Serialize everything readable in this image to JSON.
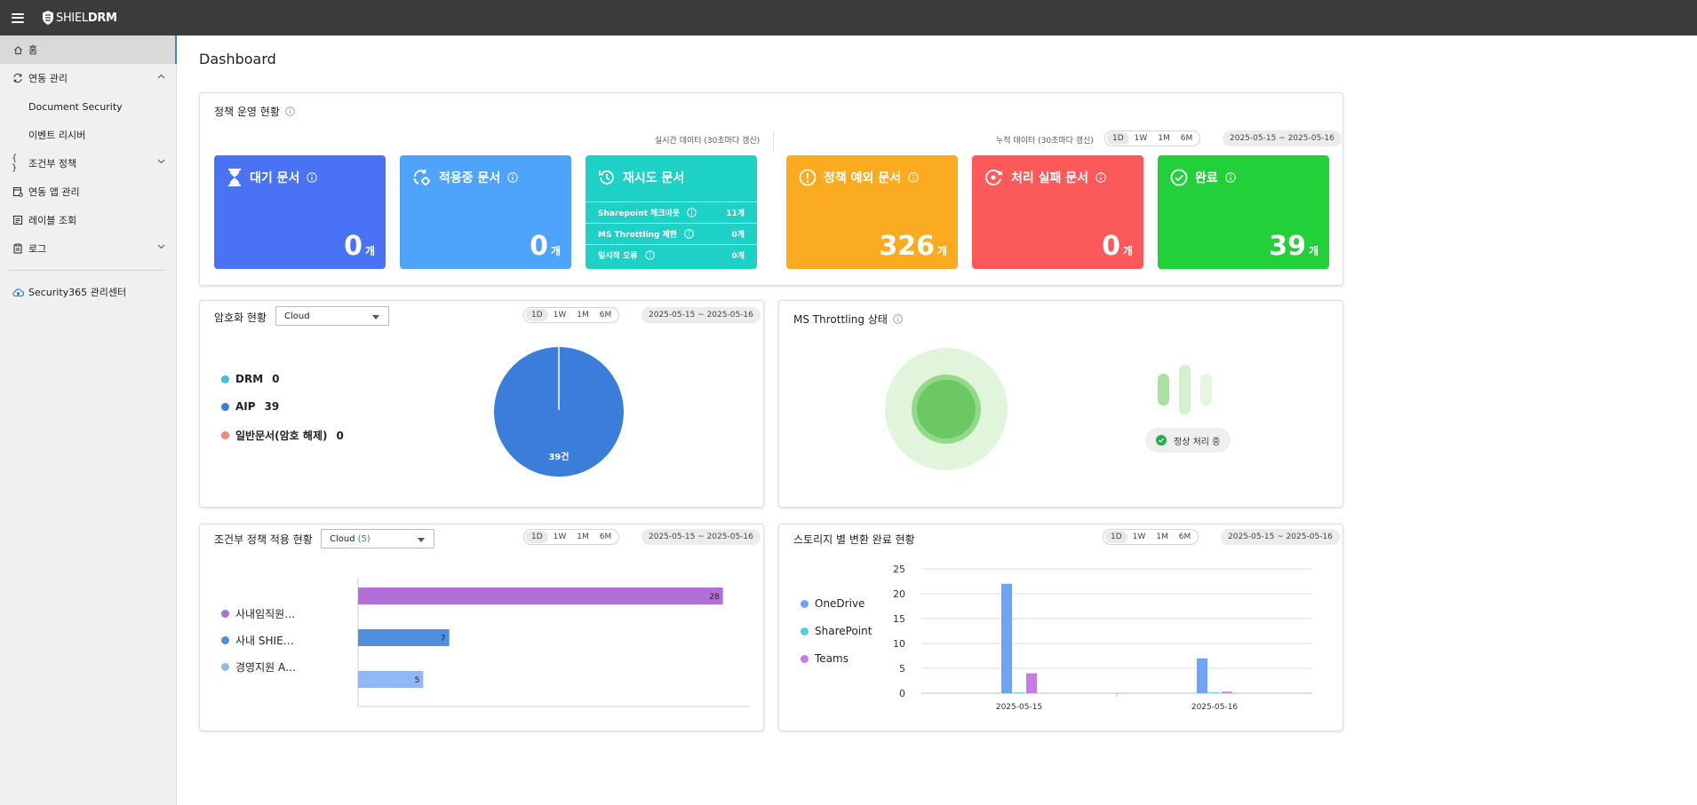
{
  "app": {
    "logo_prefix": "SHIEL",
    "logo_bold": "DRM"
  },
  "sidebar": {
    "items": [
      {
        "label": "홈"
      },
      {
        "label": "연동 관리"
      },
      {
        "label": "Document Security"
      },
      {
        "label": "이벤트 리시버"
      },
      {
        "label": "조건부 정책"
      },
      {
        "label": "연동 앱 관리"
      },
      {
        "label": "레이블 조회"
      },
      {
        "label": "로그"
      }
    ],
    "footer_item": "Security365 관리센터"
  },
  "page": {
    "title": "Dashboard"
  },
  "policy_status": {
    "title": "정책 운영 현황",
    "realtime_label": "실시간 데이터 (30초마다 갱신)",
    "cumulative_label": "누적 데이터 (30초마다 갱신)",
    "periods": [
      "1D",
      "1W",
      "1M",
      "6M"
    ],
    "date_range": "2025-05-15 ~ 2025-05-16",
    "tiles": {
      "waiting": {
        "label": "대기 문서",
        "value": "0",
        "unit": "개",
        "color": "#4a72f5"
      },
      "applying": {
        "label": "적용중 문서",
        "value": "0",
        "unit": "개",
        "color": "#4ea3fb"
      },
      "retry": {
        "label": "재시도 문서",
        "color": "#1ed1c7",
        "rows": [
          {
            "label": "Sharepoint 체크아웃",
            "value": "11개"
          },
          {
            "label": "MS Throttling 제한",
            "value": "0개"
          },
          {
            "label": "일시적 오류",
            "value": "0개"
          }
        ]
      },
      "exception": {
        "label": "정책 예외 문서",
        "value": "326",
        "unit": "개",
        "color": "#fbab1f"
      },
      "failed": {
        "label": "처리 실패 문서",
        "value": "0",
        "unit": "개",
        "color": "#fc5a5a"
      },
      "done": {
        "label": "완료",
        "value": "39",
        "unit": "개",
        "color": "#22d13a"
      }
    }
  },
  "encryption": {
    "title": "암호화 현황",
    "select_value": "Cloud",
    "periods": [
      "1D",
      "1W",
      "1M",
      "6M"
    ],
    "date_range": "2025-05-15 ~ 2025-05-16",
    "legend": [
      {
        "name": "DRM",
        "value": "0",
        "color": "#3cc3d6"
      },
      {
        "name": "AIP",
        "value": "39",
        "color": "#3b7ddb"
      },
      {
        "name": "일반문서(암호 해제)",
        "value": "0",
        "color": "#f2876a"
      }
    ],
    "pie_label": "39건"
  },
  "throttling": {
    "title": "MS Throttling 상태",
    "status": "정상 처리 중"
  },
  "conditional": {
    "title": "조건부 정책 적용 현황",
    "select_value": "Cloud",
    "select_count": "(5)",
    "periods": [
      "1D",
      "1W",
      "1M",
      "6M"
    ],
    "date_range": "2025-05-15 ~ 2025-05-16"
  },
  "storage": {
    "title": "스토리지 별 변환 완료 현황",
    "periods": [
      "1D",
      "1W",
      "1M",
      "6M"
    ],
    "date_range": "2025-05-15 ~ 2025-05-16"
  },
  "chart_data": [
    {
      "id": "encryption-pie",
      "type": "pie",
      "categories": [
        "DRM",
        "AIP",
        "일반문서(암호 해제)"
      ],
      "values": [
        0,
        39,
        0
      ],
      "colors": [
        "#3cc3d6",
        "#3b7ddb",
        "#f2876a"
      ],
      "center_label": "39건"
    },
    {
      "id": "conditional-bars",
      "type": "bar",
      "orientation": "horizontal",
      "categories": [
        "사내임직원…",
        "사내 SHIE…",
        "경영지원 A…"
      ],
      "values": [
        28,
        7,
        5
      ],
      "colors": [
        "#b36fd8",
        "#4f8fe0",
        "#90b8f5"
      ],
      "xlim": [
        0,
        30
      ]
    },
    {
      "id": "storage-bars",
      "type": "bar",
      "categories": [
        "2025-05-15",
        "2025-05-16"
      ],
      "series": [
        {
          "name": "OneDrive",
          "values": [
            22,
            7
          ],
          "color": "#6fa3f5"
        },
        {
          "name": "SharePoint",
          "values": [
            0,
            0
          ],
          "color": "#4fd0d6"
        },
        {
          "name": "Teams",
          "values": [
            4,
            0.3
          ],
          "color": "#c77be8"
        }
      ],
      "ylim": [
        0,
        25
      ],
      "yticks": [
        "25",
        "20",
        "15",
        "10",
        "5",
        "0"
      ]
    }
  ]
}
